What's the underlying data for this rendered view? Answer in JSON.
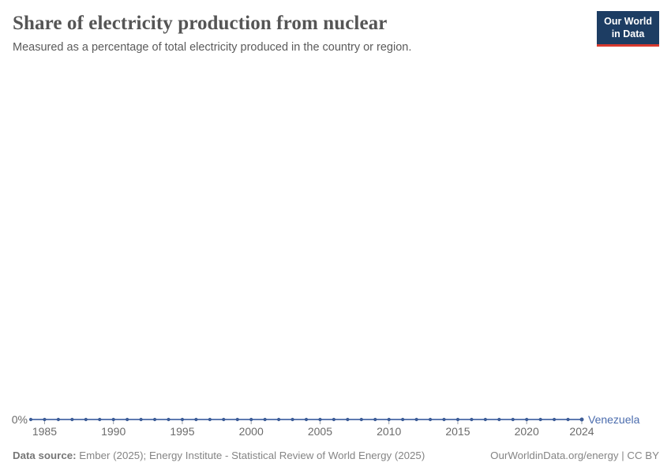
{
  "header": {
    "title": "Share of electricity production from nuclear",
    "subtitle": "Measured as a percentage of total electricity produced in the country or region.",
    "logo": {
      "line1": "Our World",
      "line2": "in Data"
    }
  },
  "chart_data": {
    "type": "line",
    "title": "Share of electricity production from nuclear",
    "xlabel": "",
    "ylabel": "",
    "xlim": [
      1984,
      2024
    ],
    "ylim": [
      0,
      0
    ],
    "grid": false,
    "legend_position": "end-of-line-label",
    "y_axis_label": "0%",
    "x_ticks": [
      1985,
      1990,
      1995,
      2000,
      2005,
      2010,
      2015,
      2020,
      2024
    ],
    "x": [
      1984,
      1985,
      1986,
      1987,
      1988,
      1989,
      1990,
      1991,
      1992,
      1993,
      1994,
      1995,
      1996,
      1997,
      1998,
      1999,
      2000,
      2001,
      2002,
      2003,
      2004,
      2005,
      2006,
      2007,
      2008,
      2009,
      2010,
      2011,
      2012,
      2013,
      2014,
      2015,
      2016,
      2017,
      2018,
      2019,
      2020,
      2021,
      2022,
      2023,
      2024
    ],
    "series": [
      {
        "name": "Venezuela",
        "values": [
          0,
          0,
          0,
          0,
          0,
          0,
          0,
          0,
          0,
          0,
          0,
          0,
          0,
          0,
          0,
          0,
          0,
          0,
          0,
          0,
          0,
          0,
          0,
          0,
          0,
          0,
          0,
          0,
          0,
          0,
          0,
          0,
          0,
          0,
          0,
          0,
          0,
          0,
          0,
          0,
          0
        ]
      }
    ]
  },
  "colors": {
    "accent_line": "#4C6CA9",
    "dot": "#3D5D97",
    "entity_label": "#4B6CAD",
    "tick_label": "#6b6b6b",
    "tick_mark": "#9aa0a8",
    "logo_bg": "#1d3d63",
    "logo_red": "#d8392e"
  },
  "footer": {
    "datasource_label": "Data source:",
    "datasource_text": " Ember (2025); Energy Institute - Statistical Review of World Energy (2025)",
    "link": "OurWorldinData.org/energy | CC BY"
  }
}
